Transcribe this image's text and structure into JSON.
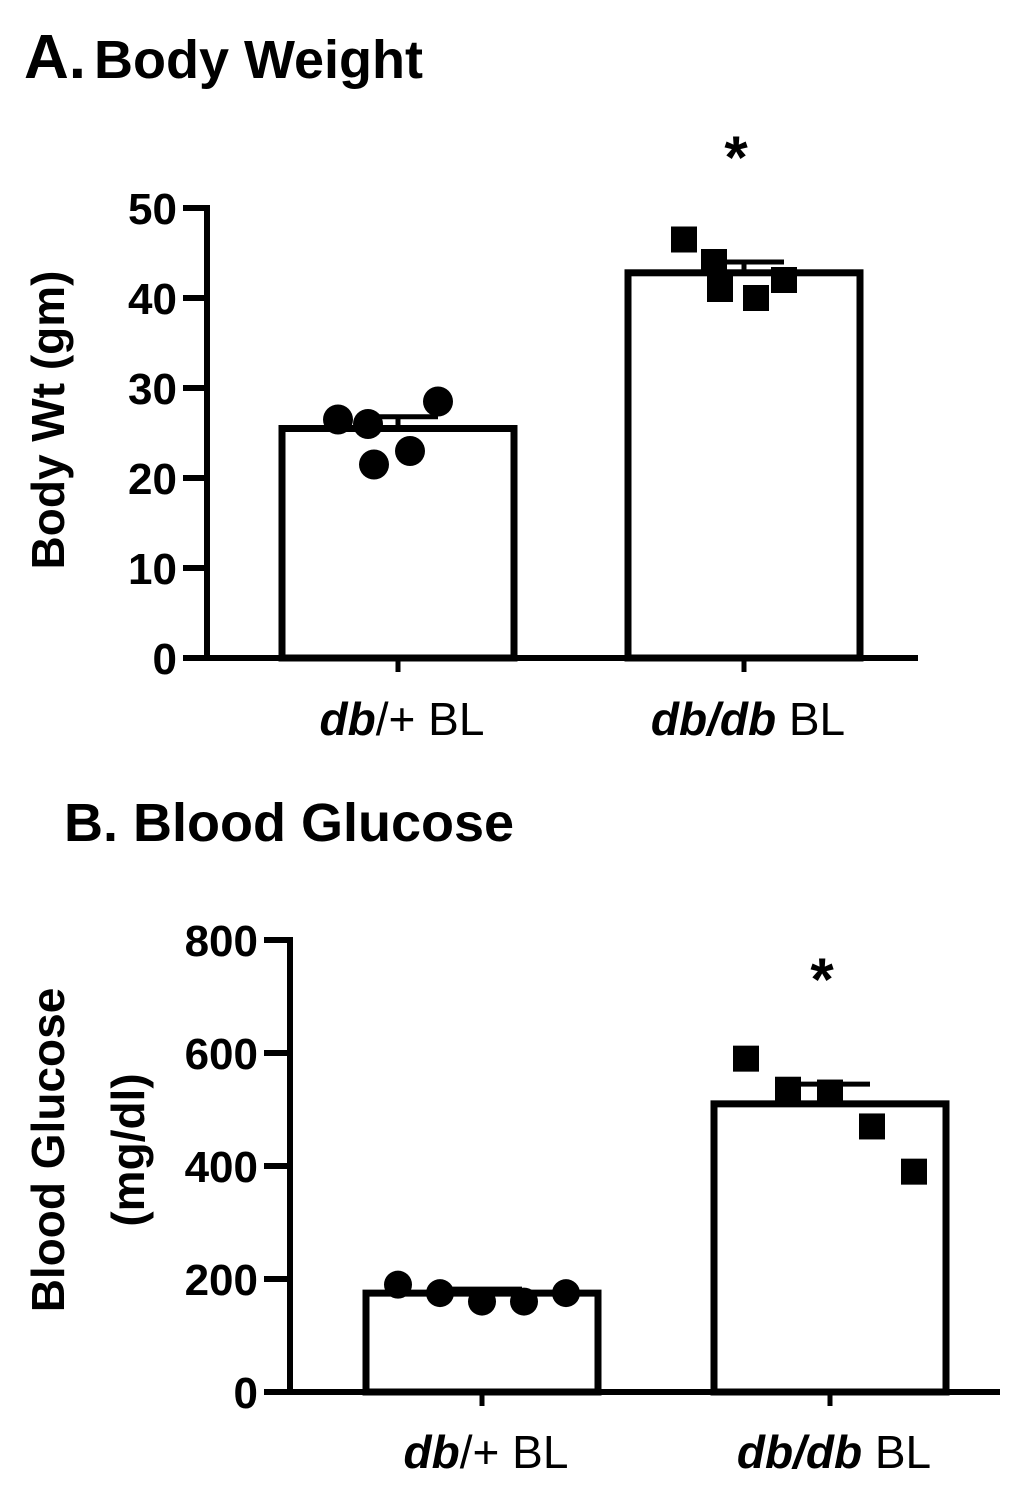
{
  "panels": {
    "a": {
      "letter": "A.",
      "title": "Body Weight"
    },
    "b": {
      "title": "B. Blood Glucose"
    }
  },
  "chart_data": [
    {
      "type": "bar",
      "title": "Body Weight",
      "ylabel": "Body Wt (gm)",
      "xlabel": "",
      "ylim": [
        0,
        50
      ],
      "yticks": [
        "0",
        "10",
        "20",
        "30",
        "40",
        "50"
      ],
      "categories": [
        {
          "italic": "db",
          "rest": "/+ BL"
        },
        {
          "italic": "db/db",
          "rest": " BL"
        }
      ],
      "values": [
        25.5,
        42.8
      ],
      "sem": [
        1.3,
        1.2
      ],
      "points": [
        [
          26.5,
          26,
          28.5,
          21.5,
          23
        ],
        [
          46.5,
          44,
          42,
          41,
          40
        ]
      ],
      "markers": [
        "circle",
        "square"
      ],
      "significance": [
        "",
        "*"
      ],
      "grid": false,
      "legend": "none"
    },
    {
      "type": "bar",
      "title": "Blood Glucose",
      "ylabel": "Blood Glucose",
      "ylabel2": "(mg/dl)",
      "xlabel": "",
      "ylim": [
        0,
        800
      ],
      "yticks": [
        "0",
        "200",
        "400",
        "600",
        "800"
      ],
      "categories": [
        {
          "italic": "db",
          "rest": "/+ BL"
        },
        {
          "italic": "db/db",
          "rest": " BL"
        }
      ],
      "values": [
        175,
        510
      ],
      "sem": [
        7,
        35
      ],
      "points": [
        [
          190,
          175,
          160,
          160,
          175
        ],
        [
          590,
          535,
          530,
          470,
          390
        ]
      ],
      "markers": [
        "circle",
        "square"
      ],
      "significance": [
        "",
        "*"
      ],
      "grid": false,
      "legend": "none"
    }
  ]
}
